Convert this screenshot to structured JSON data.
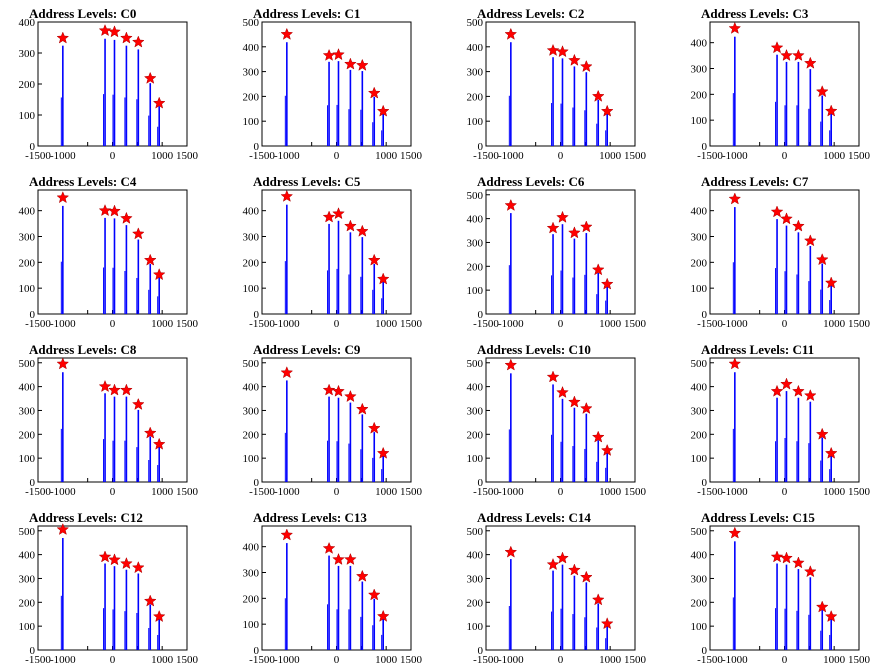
{
  "colors": {
    "histogram": "#0000ff",
    "peak_marker": "#ff0000",
    "axis": "#000000"
  },
  "x_ticks": [
    -1500,
    -1000,
    -500,
    0,
    500,
    1000,
    1500
  ],
  "x_tick_labels": [
    "-1500",
    "-1000",
    "",
    "0",
    "",
    "1000",
    "1500"
  ],
  "chart_data": [
    {
      "type": "bar",
      "title": "Address Levels: C0",
      "xlim": [
        -1500,
        1500
      ],
      "ylim": [
        0,
        400
      ],
      "y_ticks": [
        0,
        100,
        200,
        300,
        400
      ],
      "x": [
        -1000,
        -150,
        40,
        280,
        520,
        760,
        940
      ],
      "values": [
        348,
        372,
        368,
        348,
        335,
        218,
        138
      ],
      "peak_markers": [
        348,
        372,
        368,
        348,
        335,
        218,
        138
      ]
    },
    {
      "type": "bar",
      "title": "Address Levels: C1",
      "xlim": [
        -1500,
        1500
      ],
      "ylim": [
        0,
        500
      ],
      "y_ticks": [
        0,
        100,
        200,
        300,
        400,
        500
      ],
      "x": [
        -1000,
        -150,
        40,
        280,
        520,
        760,
        940
      ],
      "values": [
        450,
        365,
        368,
        330,
        325,
        213,
        140
      ],
      "peak_markers": [
        450,
        365,
        368,
        330,
        325,
        213,
        140
      ]
    },
    {
      "type": "bar",
      "title": "Address Levels: C2",
      "xlim": [
        -1500,
        1500
      ],
      "ylim": [
        0,
        500
      ],
      "y_ticks": [
        0,
        100,
        200,
        300,
        400,
        500
      ],
      "x": [
        -1000,
        -150,
        40,
        280,
        520,
        760,
        940
      ],
      "values": [
        450,
        385,
        380,
        345,
        320,
        200,
        140
      ],
      "peak_markers": [
        450,
        385,
        380,
        345,
        320,
        200,
        140
      ]
    },
    {
      "type": "bar",
      "title": "Address Levels: C3",
      "xlim": [
        -1500,
        1500
      ],
      "ylim": [
        0,
        480
      ],
      "y_ticks": [
        0,
        100,
        200,
        300,
        400
      ],
      "x": [
        -1000,
        -150,
        40,
        280,
        520,
        760,
        940
      ],
      "values": [
        455,
        380,
        350,
        350,
        320,
        210,
        135
      ],
      "peak_markers": [
        455,
        380,
        350,
        350,
        320,
        210,
        135
      ]
    },
    {
      "type": "bar",
      "title": "Address Levels: C4",
      "xlim": [
        -1500,
        1500
      ],
      "ylim": [
        0,
        480
      ],
      "y_ticks": [
        0,
        100,
        200,
        300,
        400
      ],
      "x": [
        -1000,
        -150,
        40,
        280,
        520,
        760,
        940
      ],
      "values": [
        450,
        400,
        398,
        370,
        310,
        208,
        152
      ],
      "peak_markers": [
        450,
        400,
        398,
        370,
        310,
        208,
        152
      ]
    },
    {
      "type": "bar",
      "title": "Address Levels: C5",
      "xlim": [
        -1500,
        1500
      ],
      "ylim": [
        0,
        480
      ],
      "y_ticks": [
        0,
        100,
        200,
        300,
        400
      ],
      "x": [
        -1000,
        -150,
        40,
        280,
        520,
        760,
        940
      ],
      "values": [
        455,
        375,
        388,
        340,
        320,
        208,
        135
      ],
      "peak_markers": [
        455,
        375,
        388,
        340,
        320,
        208,
        135
      ]
    },
    {
      "type": "bar",
      "title": "Address Levels: C6",
      "xlim": [
        -1500,
        1500
      ],
      "ylim": [
        0,
        520
      ],
      "y_ticks": [
        0,
        100,
        200,
        300,
        400,
        500
      ],
      "x": [
        -1000,
        -150,
        40,
        280,
        520,
        760,
        940
      ],
      "values": [
        455,
        360,
        405,
        340,
        365,
        185,
        125
      ],
      "peak_markers": [
        455,
        360,
        405,
        340,
        365,
        185,
        125
      ]
    },
    {
      "type": "bar",
      "title": "Address Levels: C7",
      "xlim": [
        -1500,
        1500
      ],
      "ylim": [
        0,
        480
      ],
      "y_ticks": [
        0,
        100,
        200,
        300,
        400
      ],
      "x": [
        -1000,
        -150,
        40,
        280,
        520,
        760,
        940
      ],
      "values": [
        445,
        395,
        368,
        340,
        283,
        210,
        120
      ],
      "peak_markers": [
        445,
        395,
        368,
        340,
        283,
        210,
        120
      ]
    },
    {
      "type": "bar",
      "title": "Address Levels: C8",
      "xlim": [
        -1500,
        1500
      ],
      "ylim": [
        0,
        520
      ],
      "y_ticks": [
        0,
        100,
        200,
        300,
        400,
        500
      ],
      "x": [
        -1000,
        -150,
        40,
        280,
        520,
        760,
        940
      ],
      "values": [
        495,
        400,
        385,
        385,
        325,
        205,
        158
      ],
      "peak_markers": [
        495,
        400,
        385,
        385,
        325,
        205,
        158
      ]
    },
    {
      "type": "bar",
      "title": "Address Levels: C9",
      "xlim": [
        -1500,
        1500
      ],
      "ylim": [
        0,
        520
      ],
      "y_ticks": [
        0,
        100,
        200,
        300,
        400,
        500
      ],
      "x": [
        -1000,
        -150,
        40,
        280,
        520,
        760,
        940
      ],
      "values": [
        458,
        385,
        380,
        358,
        305,
        225,
        120
      ],
      "peak_markers": [
        458,
        385,
        380,
        358,
        305,
        225,
        120
      ]
    },
    {
      "type": "bar",
      "title": "Address Levels: C10",
      "xlim": [
        -1500,
        1500
      ],
      "ylim": [
        0,
        520
      ],
      "y_ticks": [
        0,
        100,
        200,
        300,
        400,
        500
      ],
      "x": [
        -1000,
        -150,
        40,
        280,
        520,
        760,
        940
      ],
      "values": [
        490,
        440,
        375,
        335,
        308,
        188,
        132
      ],
      "peak_markers": [
        490,
        440,
        375,
        335,
        308,
        188,
        132
      ]
    },
    {
      "type": "bar",
      "title": "Address Levels: C11",
      "xlim": [
        -1500,
        1500
      ],
      "ylim": [
        0,
        520
      ],
      "y_ticks": [
        0,
        100,
        200,
        300,
        400,
        500
      ],
      "x": [
        -1000,
        -150,
        40,
        280,
        520,
        760,
        940
      ],
      "values": [
        495,
        380,
        410,
        380,
        362,
        200,
        120
      ],
      "peak_markers": [
        495,
        380,
        410,
        380,
        362,
        200,
        120
      ]
    },
    {
      "type": "bar",
      "title": "Address Levels: C12",
      "xlim": [
        -1500,
        1500
      ],
      "ylim": [
        0,
        520
      ],
      "y_ticks": [
        0,
        100,
        200,
        300,
        400,
        500
      ],
      "x": [
        -1000,
        -150,
        40,
        280,
        520,
        760,
        940
      ],
      "values": [
        505,
        390,
        378,
        362,
        345,
        205,
        140
      ],
      "peak_markers": [
        505,
        390,
        378,
        362,
        345,
        205,
        140
      ]
    },
    {
      "type": "bar",
      "title": "Address Levels: C13",
      "xlim": [
        -1500,
        1500
      ],
      "ylim": [
        0,
        480
      ],
      "y_ticks": [
        0,
        100,
        200,
        300,
        400
      ],
      "x": [
        -1000,
        -150,
        40,
        280,
        520,
        760,
        940
      ],
      "values": [
        445,
        393,
        350,
        350,
        285,
        213,
        130
      ],
      "peak_markers": [
        445,
        393,
        350,
        350,
        285,
        213,
        130
      ]
    },
    {
      "type": "bar",
      "title": "Address Levels: C14",
      "xlim": [
        -1500,
        1500
      ],
      "ylim": [
        0,
        520
      ],
      "y_ticks": [
        0,
        100,
        200,
        300,
        400,
        500
      ],
      "x": [
        -1000,
        -150,
        40,
        280,
        520,
        760,
        940
      ],
      "values": [
        410,
        358,
        385,
        335,
        305,
        210,
        110
      ],
      "peak_markers": [
        410,
        358,
        385,
        335,
        305,
        210,
        110
      ]
    },
    {
      "type": "bar",
      "title": "Address Levels: C15",
      "xlim": [
        -1500,
        1500
      ],
      "ylim": [
        0,
        520
      ],
      "y_ticks": [
        0,
        100,
        200,
        300,
        400,
        500
      ],
      "x": [
        -1000,
        -150,
        40,
        280,
        520,
        760,
        940
      ],
      "values": [
        490,
        390,
        385,
        365,
        328,
        180,
        140
      ],
      "peak_markers": [
        490,
        390,
        385,
        365,
        328,
        180,
        140
      ]
    }
  ]
}
